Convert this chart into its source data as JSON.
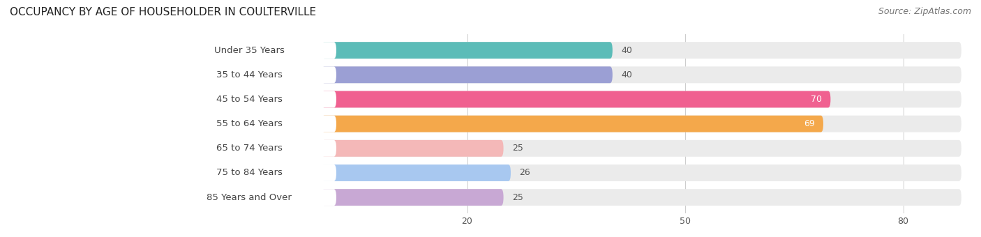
{
  "title": "OCCUPANCY BY AGE OF HOUSEHOLDER IN COULTERVILLE",
  "source": "Source: ZipAtlas.com",
  "categories": [
    "Under 35 Years",
    "35 to 44 Years",
    "45 to 54 Years",
    "55 to 64 Years",
    "65 to 74 Years",
    "75 to 84 Years",
    "85 Years and Over"
  ],
  "values": [
    40,
    40,
    70,
    69,
    25,
    26,
    25
  ],
  "bar_colors": [
    "#5bbcb8",
    "#9b9fd4",
    "#f06090",
    "#f4a84b",
    "#f4b8b8",
    "#a8c8f0",
    "#c8a8d4"
  ],
  "bar_bg_color": "#ebebeb",
  "xlim_left": -22,
  "xlim_right": 88,
  "xticks": [
    20,
    50,
    80
  ],
  "title_fontsize": 11,
  "source_fontsize": 9,
  "value_fontsize": 9,
  "category_fontsize": 9.5,
  "background_color": "#ffffff",
  "bar_height": 0.68,
  "label_bg_color": "#ffffff",
  "label_text_color": "#444444",
  "value_inside_color": "#ffffff",
  "value_outside_color": "#555555"
}
